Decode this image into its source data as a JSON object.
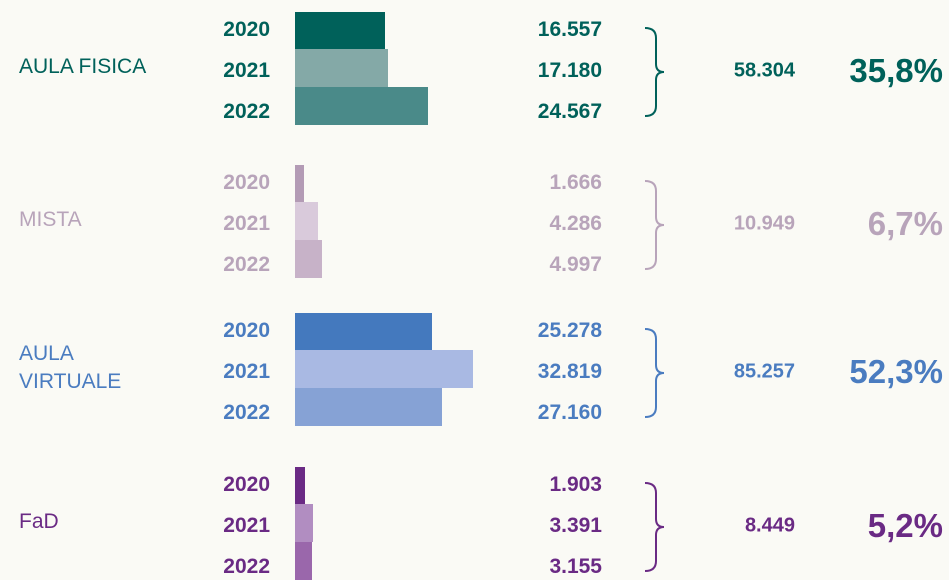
{
  "chart_data": {
    "type": "bar",
    "groups": [
      {
        "name": "AULA FISICA",
        "color": "#00615a",
        "categories": [
          "2020",
          "2021",
          "2022"
        ],
        "colors": [
          "#00615a",
          "#84a9a7",
          "#4a8a89"
        ],
        "values": [
          16557,
          17180,
          24567
        ],
        "value_labels": [
          "16.557",
          "17.180",
          "24.567"
        ],
        "total": 58304,
        "total_label": "58.304",
        "share": 35.8,
        "share_label": "35,8%"
      },
      {
        "name": "MISTA",
        "color": "#b8a4ba",
        "categories": [
          "2020",
          "2021",
          "2022"
        ],
        "colors": [
          "#b39bb5",
          "#d9cadb",
          "#c7b2c8"
        ],
        "values": [
          1666,
          4286,
          4997
        ],
        "value_labels": [
          "1.666",
          "4.286",
          "4.997"
        ],
        "total": 10949,
        "total_label": "10.949",
        "share": 6.7,
        "share_label": "6,7%"
      },
      {
        "name": "AULA VIRTUALE",
        "color": "#4a7cc0",
        "categories": [
          "2020",
          "2021",
          "2022"
        ],
        "colors": [
          "#4479be",
          "#a9b9e3",
          "#86a2d5"
        ],
        "values": [
          25278,
          32819,
          27160
        ],
        "value_labels": [
          "25.278",
          "32.819",
          "27.160"
        ],
        "total": 85257,
        "total_label": "85.257",
        "share": 52.3,
        "share_label": "52,3%"
      },
      {
        "name": "FaD",
        "color": "#6a2a84",
        "categories": [
          "2020",
          "2021",
          "2022"
        ],
        "colors": [
          "#6a2a84",
          "#b18dc1",
          "#9a67ab"
        ],
        "values": [
          1903,
          3391,
          3155
        ],
        "value_labels": [
          "1.903",
          "3.391",
          "3.155"
        ],
        "total": 8449,
        "total_label": "8.449",
        "share": 5.2,
        "share_label": "5,2%"
      }
    ]
  }
}
